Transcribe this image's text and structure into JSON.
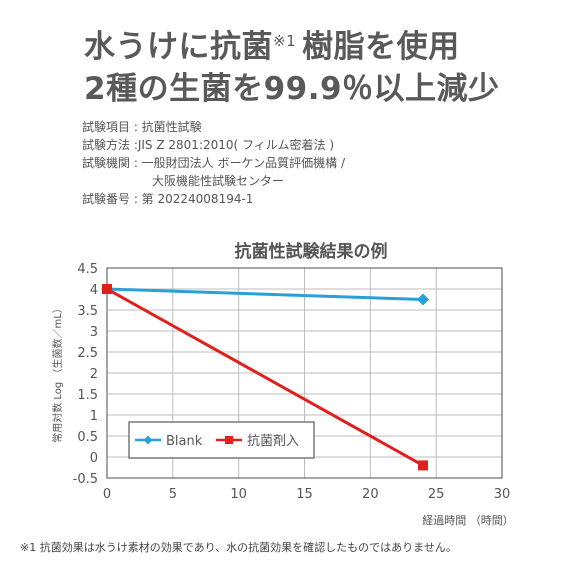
{
  "headline": {
    "line1_main": "水うけに抗菌",
    "line1_mark": "※1",
    "line1_rest": "樹脂を使用",
    "line2": "2種の生菌を99.9％以上減少"
  },
  "test_info": {
    "item": "試験項目 : 抗菌性試験",
    "method": "試験方法 :JIS Z 2801:2010( フィルム密着法 )",
    "org": "試験機関 : 一般財団法人 ボーケン品質評価機構 /",
    "org_cont": "大阪機能性試験センター",
    "number": "試験番号 : 第 20224008194-1"
  },
  "chart_data": {
    "type": "line",
    "title": "抗菌性試験結果の例",
    "xlabel": "経過時間 （時間）",
    "ylabel": "常用対数 Log （生菌数／mL）",
    "xlim": [
      0,
      30
    ],
    "ylim": [
      -0.5,
      4.5
    ],
    "xticks": [
      0,
      5,
      10,
      15,
      20,
      25,
      30
    ],
    "yticks": [
      -0.5,
      0,
      0.5,
      1,
      1.5,
      2,
      2.5,
      3,
      3.5,
      4,
      4.5
    ],
    "grid": true,
    "legend": "lower-left",
    "series": [
      {
        "name": "Blank",
        "color": "#2a9fd8",
        "marker": "diamond",
        "x": [
          0,
          24
        ],
        "y": [
          4.0,
          3.75
        ]
      },
      {
        "name": "抗菌剤入",
        "color": "#e0201d",
        "marker": "square",
        "x": [
          0,
          24
        ],
        "y": [
          4.0,
          -0.2
        ]
      }
    ]
  },
  "footnote": "※1 抗菌効果は水うけ素材の効果であり、水の抗菌効果を確認したものではありません。"
}
